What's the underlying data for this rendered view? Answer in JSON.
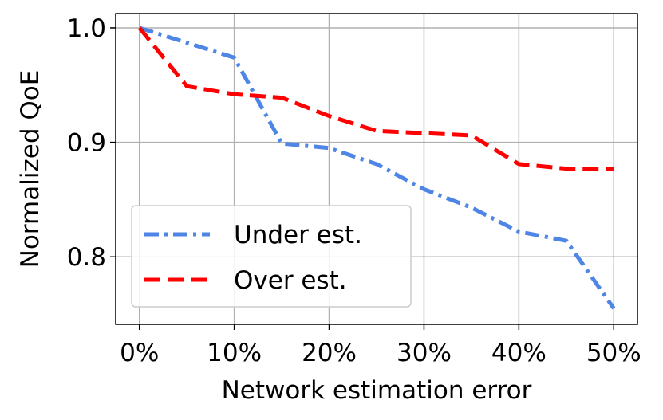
{
  "chart_data": {
    "type": "line",
    "xlabel": "Network estimation error",
    "ylabel": "Normalized QoE",
    "x": [
      0,
      5,
      10,
      15,
      20,
      25,
      30,
      35,
      40,
      45,
      50
    ],
    "series": [
      {
        "name": "Under est.",
        "color": "#4f86e6",
        "linestyle": "dashdot",
        "values": [
          1.0,
          0.987,
          0.974,
          0.899,
          0.895,
          0.881,
          0.859,
          0.843,
          0.822,
          0.814,
          0.755
        ]
      },
      {
        "name": "Over est.",
        "color": "#ff0000",
        "linestyle": "dashed",
        "values": [
          1.0,
          0.949,
          0.942,
          0.939,
          0.923,
          0.91,
          0.908,
          0.906,
          0.881,
          0.877,
          0.877
        ]
      }
    ],
    "xlim": [
      -2.5,
      52.5
    ],
    "ylim": [
      0.741,
      1.0125
    ],
    "xticks": [
      {
        "value": 0,
        "label": "0%"
      },
      {
        "value": 10,
        "label": "10%"
      },
      {
        "value": 20,
        "label": "20%"
      },
      {
        "value": 30,
        "label": "30%"
      },
      {
        "value": 40,
        "label": "40%"
      },
      {
        "value": 50,
        "label": "50%"
      }
    ],
    "yticks": [
      {
        "value": 0.8,
        "label": "0.8"
      },
      {
        "value": 0.9,
        "label": "0.9"
      },
      {
        "value": 1.0,
        "label": "1.0"
      }
    ],
    "grid": true,
    "legend": "lower left"
  }
}
